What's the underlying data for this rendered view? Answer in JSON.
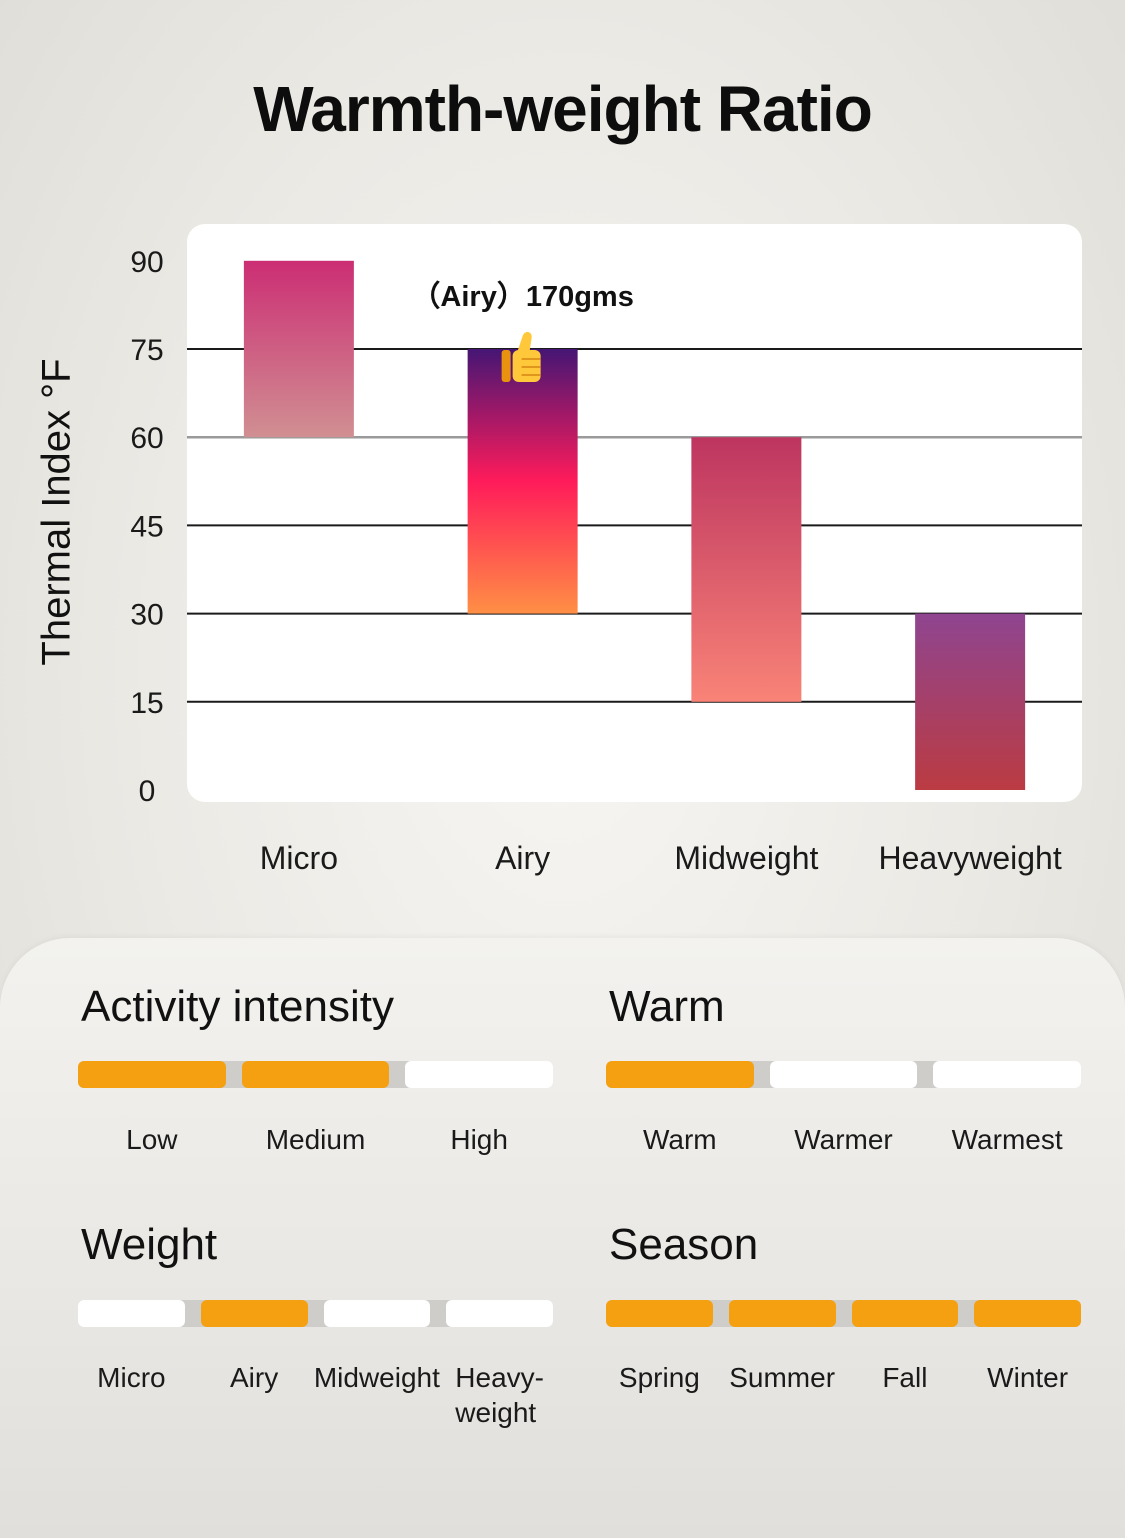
{
  "title": "Warmth-weight Ratio",
  "chart_data": {
    "type": "bar",
    "subtype": "floating-range",
    "title": "Warmth-weight Ratio",
    "ylabel": "Thermal Index °F",
    "xlabel": "",
    "ylim": [
      0,
      90
    ],
    "yticks": [
      "0",
      "15",
      "30",
      "45",
      "60",
      "75",
      "90"
    ],
    "grid": true,
    "categories": [
      "Micro",
      "Airy",
      "Midweight",
      "Heavyweight"
    ],
    "ranges": [
      [
        60,
        90
      ],
      [
        30,
        75
      ],
      [
        15,
        60
      ],
      [
        0,
        30
      ]
    ],
    "colors": [
      [
        "#cc2e74",
        "#d08f92"
      ],
      [
        "#451674",
        "#ff1b5a",
        "#ff8f45"
      ],
      [
        "#bd3560",
        "#f98377"
      ],
      [
        "#8f4590",
        "#bb3b42"
      ]
    ],
    "annotation": {
      "text": "（Airy）170gms",
      "category": "Airy",
      "icon": "thumbs-up-icon"
    }
  },
  "scales": [
    {
      "title": "Activity intensity",
      "levels": [
        "Low",
        "Medium",
        "High"
      ],
      "active": [
        true,
        true,
        false
      ]
    },
    {
      "title": "Warm",
      "levels": [
        "Warm",
        "Warmer",
        "Warmest"
      ],
      "active": [
        true,
        false,
        false
      ]
    },
    {
      "title": "Weight",
      "levels": [
        "Micro",
        "Airy",
        "Midweight",
        "Heavy-\nweight"
      ],
      "active": [
        false,
        true,
        false,
        false
      ]
    },
    {
      "title": "Season",
      "levels": [
        "Spring",
        "Summer",
        "Fall",
        "Winter"
      ],
      "active": [
        true,
        true,
        true,
        true
      ]
    }
  ],
  "accent_color": "#f5a010"
}
